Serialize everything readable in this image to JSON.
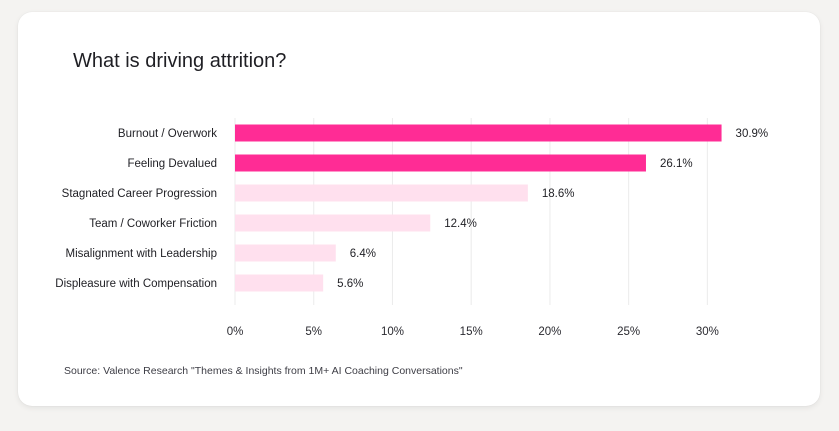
{
  "chart_data": {
    "type": "bar",
    "orientation": "horizontal",
    "title": "What is driving attrition?",
    "categories": [
      "Burnout / Overwork",
      "Feeling Devalued",
      "Stagnated Career Progression",
      "Team / Coworker Friction",
      "Misalignment with Leadership",
      "Displeasure with Compensation"
    ],
    "values": [
      30.9,
      26.1,
      18.6,
      12.4,
      6.4,
      5.6
    ],
    "value_labels": [
      "30.9%",
      "26.1%",
      "18.6%",
      "12.4%",
      "6.4%",
      "5.6%"
    ],
    "bar_colors": [
      "#ff2c95",
      "#ff2c95",
      "#ffe0ee",
      "#ffe0ee",
      "#ffe0ee",
      "#ffe0ee"
    ],
    "xticks": [
      0,
      5,
      10,
      15,
      20,
      25,
      30
    ],
    "xtick_labels": [
      "0%",
      "5%",
      "10%",
      "15%",
      "20%",
      "25%",
      "30%"
    ],
    "xlim": [
      0,
      31.5
    ],
    "xlabel": "",
    "ylabel": "",
    "grid": true,
    "gridline_color": "#ebebeb"
  },
  "source": "Source: Valence Research \"Themes & Insights from 1M+ AI Coaching Conversations\""
}
